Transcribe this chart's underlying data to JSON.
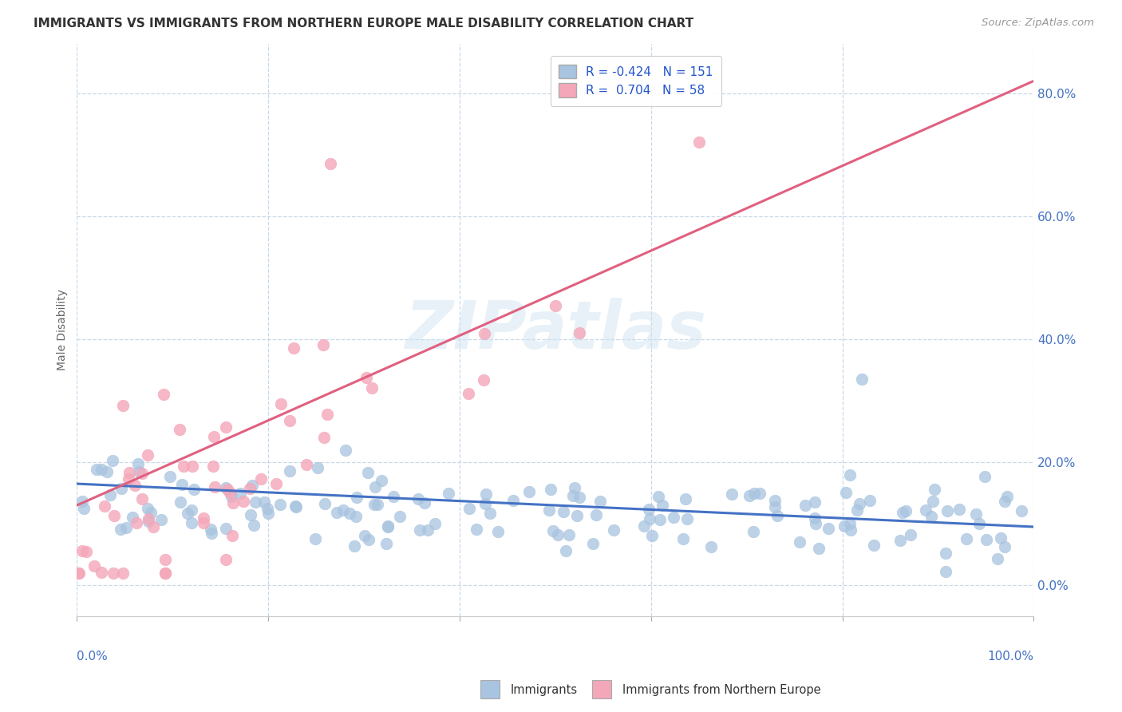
{
  "title": "IMMIGRANTS VS IMMIGRANTS FROM NORTHERN EUROPE MALE DISABILITY CORRELATION CHART",
  "source": "Source: ZipAtlas.com",
  "ylabel": "Male Disability",
  "legend_labels": [
    "Immigrants",
    "Immigrants from Northern Europe"
  ],
  "blue_R": -0.424,
  "blue_N": 151,
  "pink_R": 0.704,
  "pink_N": 58,
  "blue_color": "#a8c4e0",
  "pink_color": "#f4a7b9",
  "blue_line_color": "#4472c4",
  "pink_line_color": "#e06080",
  "background_color": "#ffffff",
  "grid_color": "#c8d8ea",
  "watermark": "ZIPatlas",
  "xlim": [
    0.0,
    1.0
  ],
  "ylim": [
    -0.05,
    0.88
  ],
  "blue_trend_y_start": 0.165,
  "blue_trend_y_end": 0.095,
  "pink_trend_y_start": 0.13,
  "pink_trend_y_end": 0.82,
  "yticks": [
    0.0,
    0.2,
    0.4,
    0.6,
    0.8
  ],
  "title_fontsize": 11,
  "axis_label_fontsize": 10,
  "legend_fontsize": 11,
  "tick_fontsize": 11
}
